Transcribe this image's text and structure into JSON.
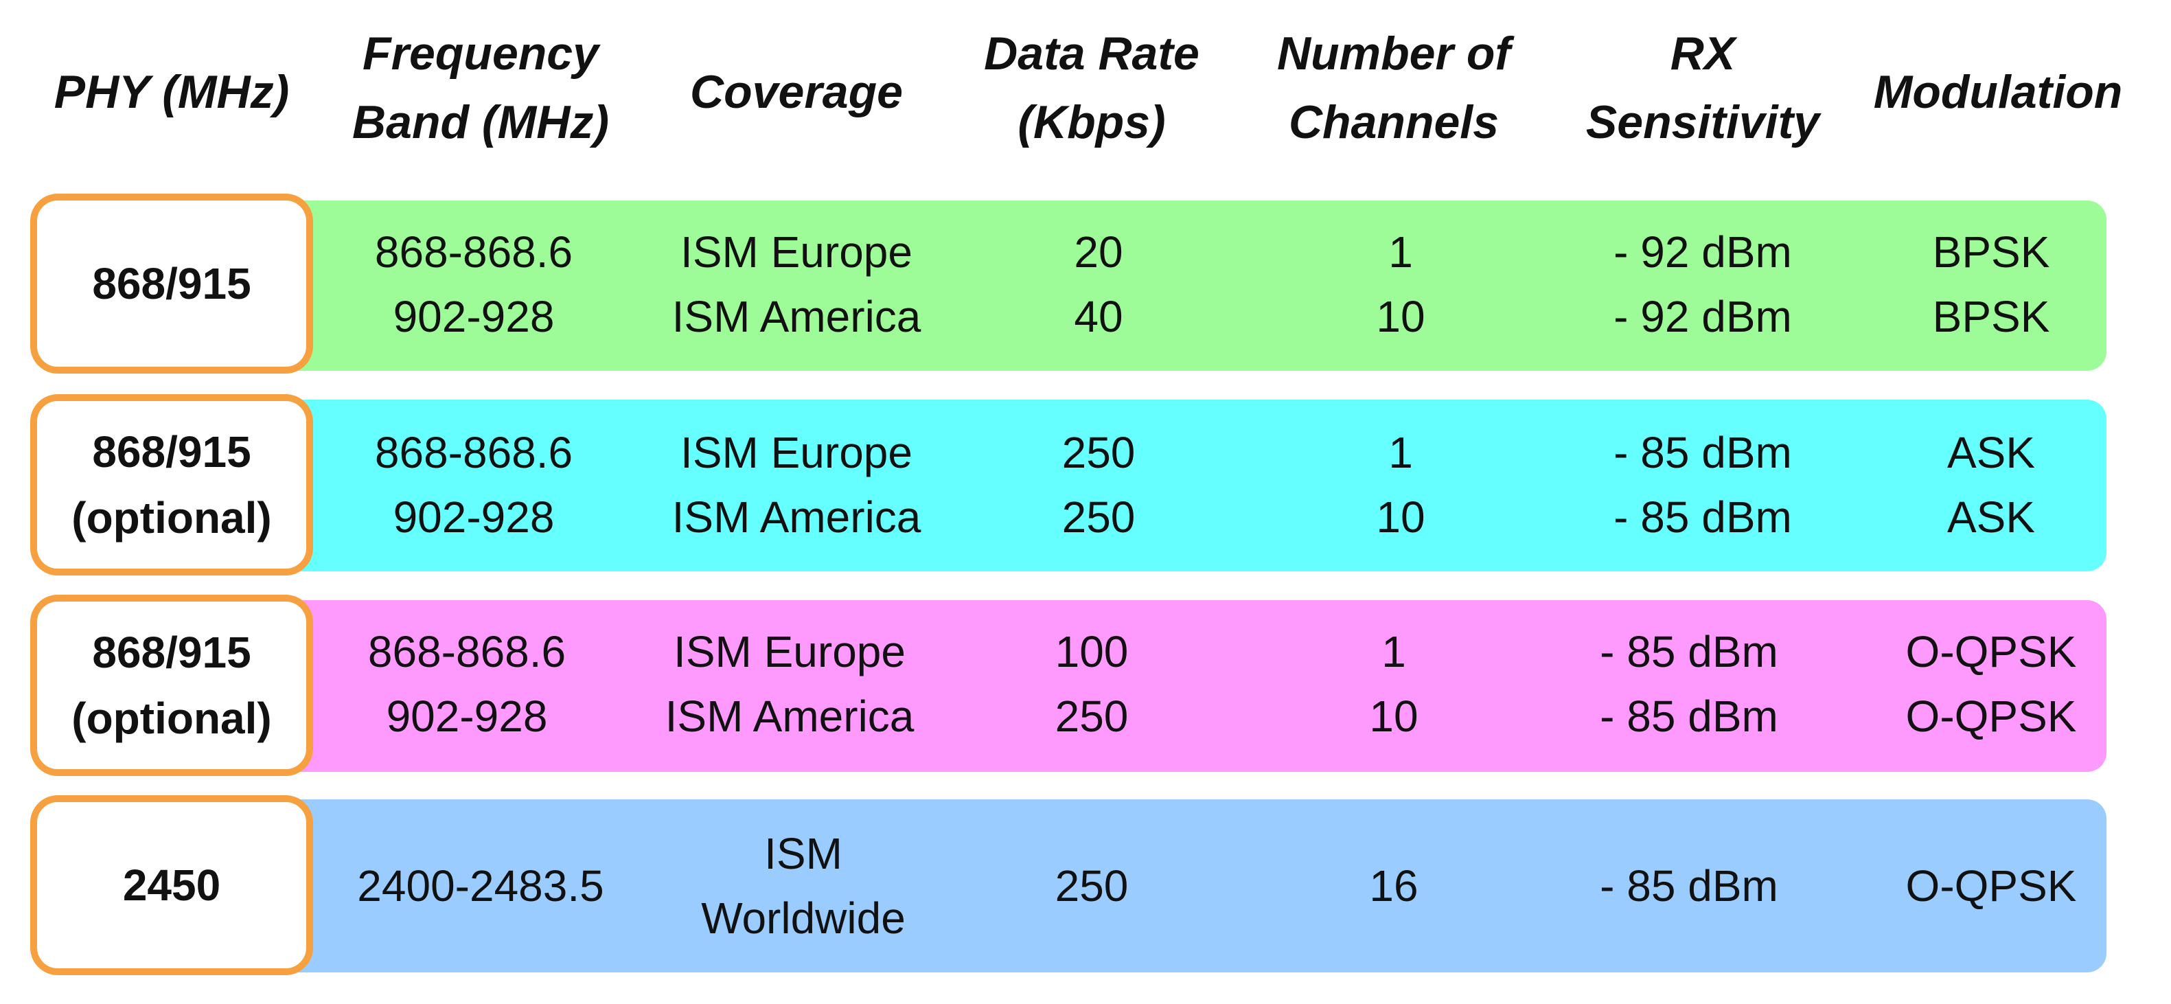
{
  "headers": {
    "phy": [
      "PHY (MHz)"
    ],
    "frequency": [
      "Frequency",
      "Band (MHz)"
    ],
    "coverage": [
      "Coverage"
    ],
    "data_rate": [
      "Data Rate",
      "(Kbps)"
    ],
    "channels": [
      "Number of",
      "Channels"
    ],
    "rx": [
      "RX",
      "Sensitivity"
    ],
    "modulation": [
      "Modulation"
    ]
  },
  "colors": {
    "row1": "#9efc98",
    "row2": "#66ffff",
    "row3": "#fe99fe",
    "row4": "#9accff",
    "phy_border": "#f7a040"
  },
  "rows": [
    {
      "phy": [
        "868/915"
      ],
      "frequency": [
        "868-868.6",
        "902-928"
      ],
      "coverage": [
        "ISM Europe",
        "ISM America"
      ],
      "data_rate": [
        "20",
        "40"
      ],
      "channels": [
        "1",
        "10"
      ],
      "rx": [
        "- 92 dBm",
        "- 92 dBm"
      ],
      "modulation": [
        "BPSK",
        "BPSK"
      ]
    },
    {
      "phy": [
        "868/915",
        "(optional)"
      ],
      "frequency": [
        "868-868.6",
        "902-928"
      ],
      "coverage": [
        "ISM Europe",
        "ISM America"
      ],
      "data_rate": [
        "250",
        "250"
      ],
      "channels": [
        "1",
        "10"
      ],
      "rx": [
        "- 85 dBm",
        "- 85 dBm"
      ],
      "modulation": [
        "ASK",
        "ASK"
      ]
    },
    {
      "phy": [
        "868/915",
        "(optional)"
      ],
      "frequency": [
        "868-868.6",
        "902-928"
      ],
      "coverage": [
        "ISM Europe",
        "ISM America"
      ],
      "data_rate": [
        "100",
        "250"
      ],
      "channels": [
        "1",
        "10"
      ],
      "rx": [
        "- 85 dBm",
        "- 85 dBm"
      ],
      "modulation": [
        "O-QPSK",
        "O-QPSK"
      ]
    },
    {
      "phy": [
        "2450"
      ],
      "frequency": [
        "2400-2483.5"
      ],
      "coverage": [
        "ISM",
        "Worldwide"
      ],
      "data_rate": [
        "250"
      ],
      "channels": [
        "16"
      ],
      "rx": [
        "- 85 dBm"
      ],
      "modulation": [
        "O-QPSK"
      ]
    }
  ]
}
